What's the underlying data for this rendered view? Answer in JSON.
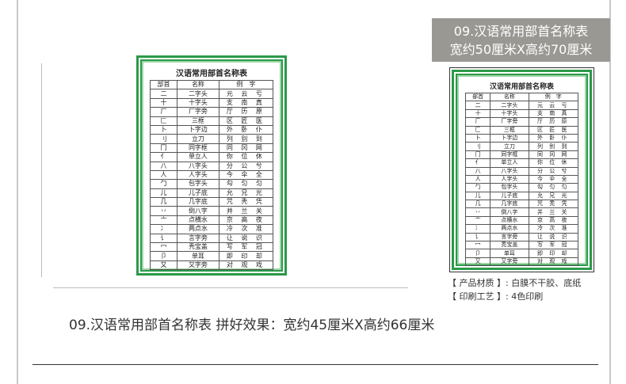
{
  "poster": {
    "title": "汉语常用部首名称表",
    "headers": [
      "部首",
      "名称",
      "例　字"
    ],
    "rows": [
      [
        "二",
        "二字头",
        "元 云 亏"
      ],
      [
        "十",
        "十字头",
        "支 南 真"
      ],
      [
        "厂",
        "厂字旁",
        "厅 历 原"
      ],
      [
        "匚",
        "三框",
        "区 匠 医"
      ],
      [
        "卜",
        "卜字边",
        "外 卧 仆"
      ],
      [
        "刂",
        "立刀",
        "列 别 到"
      ],
      [
        "冂",
        "同字框",
        "同 冈 网"
      ],
      [
        "亻",
        "单立人",
        "你 位 休"
      ],
      [
        "八",
        "八字头",
        "分 公 兮"
      ],
      [
        "人",
        "人字头",
        "今 伞 全"
      ],
      [
        "勹",
        "包字头",
        "勾 匀 匀"
      ],
      [
        "儿",
        "儿子底",
        "允 兄 光"
      ],
      [
        "几",
        "几字底",
        "咒 秃 凭"
      ],
      [
        "丷",
        "倒八字",
        "并 兰 关"
      ],
      [
        "亠",
        "点横水",
        "京 高 夜"
      ],
      [
        "冫",
        "两点水",
        "冷 次 准"
      ],
      [
        "讠",
        "言字旁",
        "让 说 识"
      ],
      [
        "冖",
        "秃宝盖",
        "写 军 冠"
      ],
      [
        "卩",
        "单耳",
        "即 印 却"
      ],
      [
        "又",
        "又字旁",
        "对 观 戏"
      ]
    ]
  },
  "banner": {
    "line1": "09.汉语常用部首名称表",
    "line2": "宽约50厘米X高约70厘米"
  },
  "info": {
    "material": "【 产品材质 】: 白膜不干胶、底纸",
    "printing": "【 印刷工艺 】: 4色印刷"
  },
  "caption": "09.汉语常用部首名称表 拼好效果：宽约45厘米X高约66厘米",
  "colors": {
    "frame_green": "#2a9a48",
    "banner_gray": "#9a9893"
  }
}
